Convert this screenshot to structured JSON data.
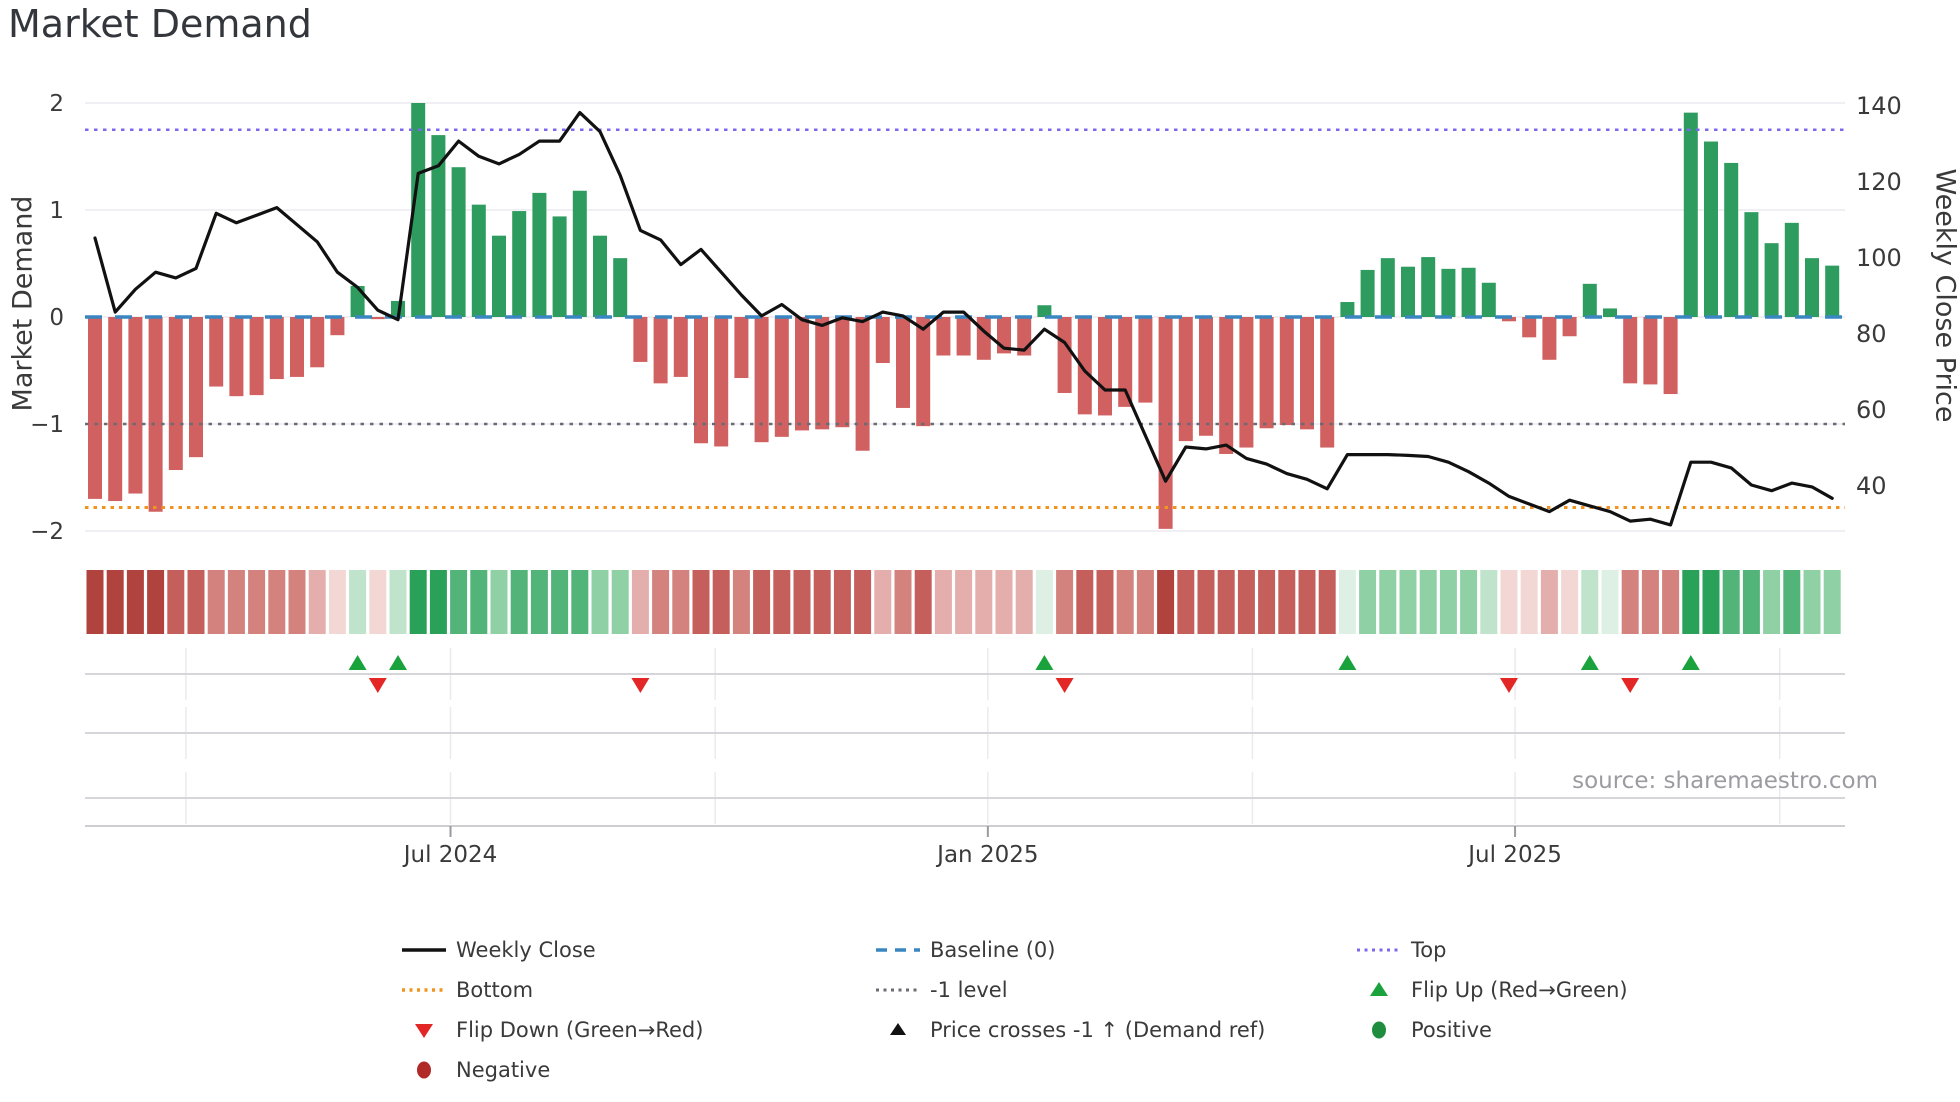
{
  "title": "Market Demand",
  "source": "source: sharemaestro.com",
  "colors": {
    "bar_positive": "#2f9c5f",
    "bar_negative": "#d16060",
    "price_line": "#111111",
    "baseline": "#3a86c0",
    "top_line": "#7b68ee",
    "minus_one_line": "#6b6b73",
    "bottom_line": "#f0941f",
    "flip_up": "#1aa23c",
    "flip_down": "#e32626",
    "positive_dot": "#1e8e3e",
    "negative_dot": "#b02a28",
    "gridline": "#f0f0f4",
    "panel_line": "#d6d6da",
    "panel_grid": "#ebebef",
    "spine": "#cdcdd2",
    "tick_text": "#3a3a3a"
  },
  "chart_data": {
    "type": "bar+line",
    "title": "Market Demand",
    "weeks": 87,
    "left_axis": {
      "label": "Market Demand",
      "ticks": [
        2,
        1,
        0,
        -1,
        -2
      ],
      "tick_labels": [
        "2",
        "1",
        "0",
        "−1",
        "−2"
      ],
      "range": [
        -2.33,
        2.33
      ]
    },
    "right_axis": {
      "label": "Weekly Close Price",
      "ticks": [
        140,
        120,
        100,
        80,
        60,
        40
      ]
    },
    "x_ticks": [
      {
        "label": "Jul 2024",
        "index": 17.6
      },
      {
        "label": "Jan 2025",
        "index": 44.2
      },
      {
        "label": "Jul 2025",
        "index": 70.3
      }
    ],
    "x_gridline_indices": [
      4.5,
      17.6,
      30.7,
      44.2,
      57.3,
      70.3,
      83.4
    ],
    "ref_lines": {
      "baseline": 0,
      "top": 1.75,
      "minus_one": -1,
      "bottom": -1.78
    },
    "series": [
      {
        "name": "Market Demand",
        "type": "bar"
      },
      {
        "name": "Weekly Close",
        "type": "line",
        "axis": "right"
      }
    ],
    "demand": [
      -1.7,
      -1.72,
      -1.65,
      -1.82,
      -1.43,
      -1.31,
      -0.65,
      -0.74,
      -0.73,
      -0.58,
      -0.56,
      -0.47,
      -0.17,
      0.29,
      -0.02,
      0.15,
      2.0,
      1.7,
      1.4,
      1.05,
      0.76,
      0.99,
      1.16,
      0.94,
      1.18,
      0.76,
      0.55,
      -0.42,
      -0.62,
      -0.56,
      -1.18,
      -1.21,
      -0.57,
      -1.17,
      -1.12,
      -1.06,
      -1.05,
      -1.03,
      -1.25,
      -0.43,
      -0.85,
      -1.02,
      -0.36,
      -0.36,
      -0.4,
      -0.34,
      -0.36,
      0.11,
      -0.71,
      -0.91,
      -0.92,
      -0.84,
      -0.8,
      -1.98,
      -1.16,
      -1.11,
      -1.28,
      -1.22,
      -1.04,
      -1.01,
      -1.05,
      -1.22,
      0.14,
      0.44,
      0.55,
      0.47,
      0.56,
      0.45,
      0.46,
      0.32,
      -0.04,
      -0.19,
      -0.4,
      -0.18,
      0.31,
      0.08,
      -0.62,
      -0.63,
      -0.72,
      1.91,
      1.64,
      1.44,
      0.98,
      0.69,
      0.88,
      0.55,
      0.48
    ],
    "weekly_close": [
      105,
      85.5,
      91.5,
      96,
      94.5,
      97,
      111.5,
      109,
      111,
      113,
      108.5,
      104,
      96,
      92,
      86,
      83.5,
      122,
      124,
      130.5,
      126.5,
      124.5,
      127,
      130.5,
      130.5,
      138,
      133,
      121.5,
      107,
      104.5,
      98,
      102,
      96,
      90,
      84.5,
      87.5,
      83.5,
      82,
      84,
      83,
      85.5,
      84.5,
      81,
      85.5,
      85.5,
      80.5,
      76,
      75.5,
      81,
      77.5,
      70,
      65,
      65,
      53,
      41,
      50,
      49.5,
      50.5,
      47,
      45.5,
      43,
      41.5,
      39,
      48,
      48,
      48,
      47.8,
      47.5,
      46,
      43.5,
      40.5,
      37,
      35,
      33,
      36,
      34.5,
      33,
      30.5,
      31,
      29.5,
      46,
      46,
      44.5,
      40,
      38.5,
      40.5,
      39.5,
      36.5
    ],
    "flip_up_indices": [
      13,
      15,
      47,
      62,
      74,
      79
    ],
    "flip_down_indices": [
      14,
      27,
      48,
      70,
      76
    ],
    "price_cross_indices": [],
    "heat_ramp": {
      "pos": [
        [
          0.15,
          "#ddf0e3"
        ],
        [
          0.4,
          "#bfe4cb"
        ],
        [
          0.8,
          "#8fd0a5"
        ],
        [
          1.5,
          "#53b47a"
        ],
        [
          9,
          "#2aa158"
        ]
      ],
      "neg": [
        [
          0.25,
          "#f2d7d5"
        ],
        [
          0.55,
          "#e3aeab"
        ],
        [
          0.9,
          "#d3827e"
        ],
        [
          1.5,
          "#c45f5b"
        ],
        [
          9,
          "#b1433f"
        ]
      ]
    }
  },
  "legend": {
    "columns": [
      [
        {
          "label": "Weekly Close",
          "marker": "line-black"
        },
        {
          "label": "Bottom",
          "marker": "dot-orange"
        },
        {
          "label": "Flip Down (Green→Red)",
          "marker": "tri-down-red"
        },
        {
          "label": "Negative",
          "marker": "circle-darkred"
        }
      ],
      [
        {
          "label": "Baseline (0)",
          "marker": "dash-blue"
        },
        {
          "label": "-1 level",
          "marker": "dot-gray"
        },
        {
          "label": "Price crosses -1 ↑ (Demand ref)",
          "marker": "tri-up-black"
        }
      ],
      [
        {
          "label": "Top",
          "marker": "dot-purple"
        },
        {
          "label": "Flip Up (Red→Green)",
          "marker": "tri-up-green"
        },
        {
          "label": "Positive",
          "marker": "circle-green"
        }
      ]
    ]
  }
}
